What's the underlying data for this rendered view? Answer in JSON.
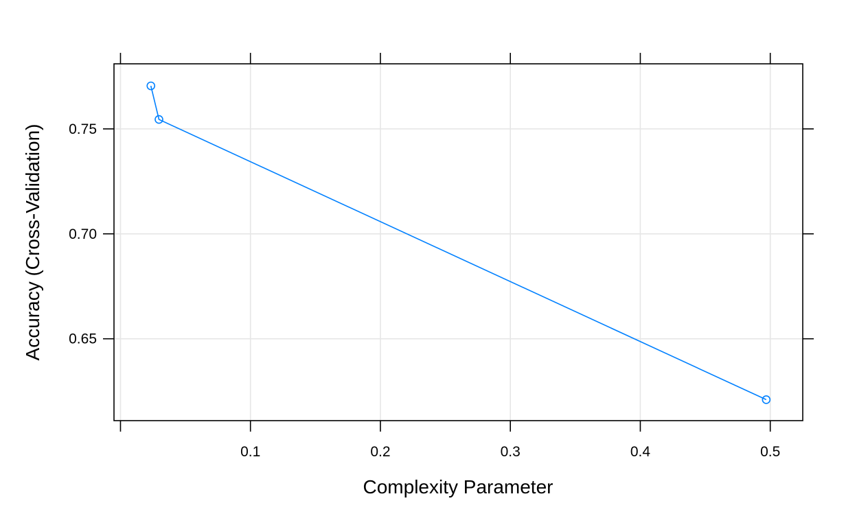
{
  "chart_data": {
    "type": "line",
    "xlabel": "Complexity Parameter",
    "ylabel": "Accuracy (Cross-Validation)",
    "xlim": [
      -0.005,
      0.525
    ],
    "ylim": [
      0.611,
      0.781
    ],
    "x_ticks": [
      0.1,
      0.2,
      0.3,
      0.4,
      0.5
    ],
    "x_tick_labels": [
      "0.1",
      "0.2",
      "0.3",
      "0.4",
      "0.5"
    ],
    "y_ticks": [
      0.65,
      0.7,
      0.75
    ],
    "y_tick_labels": [
      "0.65",
      "0.70",
      "0.75"
    ],
    "grid": true,
    "marker": "open-circle",
    "series": [
      {
        "color": "#0080ff",
        "points": [
          {
            "x": 0.0234,
            "y": 0.7705
          },
          {
            "x": 0.0296,
            "y": 0.7545
          },
          {
            "x": 0.4969,
            "y": 0.621
          }
        ]
      }
    ]
  }
}
